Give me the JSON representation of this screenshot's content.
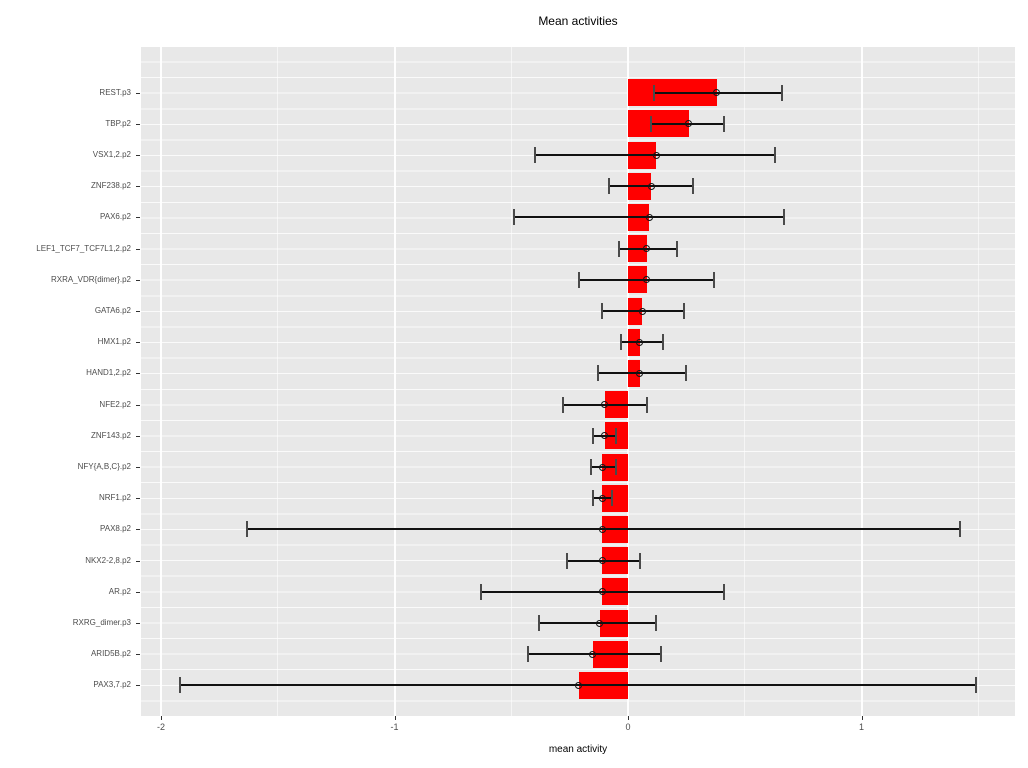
{
  "title": "Mean activities",
  "chart_data": {
    "type": "bar",
    "orientation": "horizontal",
    "title": "Mean activities",
    "xlabel": "mean activity",
    "ylabel": "",
    "xlim": [
      -2.09,
      1.66
    ],
    "x_major_ticks": [
      -2,
      -1,
      0,
      1
    ],
    "x_minor_ticks": [
      -1.5,
      -0.5,
      0.5,
      1.5
    ],
    "grid": true,
    "legend": false,
    "error_bars": true,
    "point_marker": "open-circle",
    "colors": {
      "bar": "#ff0000",
      "panel_background": "#e8e8e8",
      "grid_major": "#ffffff",
      "grid_minor": "#f5f5f5",
      "error_bar": "#111111",
      "error_cap": "#4a4a4a",
      "axis_text": "#4d4d4d",
      "title_text": "#000000"
    },
    "categories": [
      "REST.p3",
      "TBP.p2",
      "VSX1,2.p2",
      "ZNF238.p2",
      "PAX6.p2",
      "LEF1_TCF7_TCF7L1,2.p2",
      "RXRA_VDR{dimer}.p2",
      "GATA6.p2",
      "HMX1.p2",
      "HAND1,2.p2",
      "NFE2.p2",
      "ZNF143.p2",
      "NFY{A,B,C}.p2",
      "NRF1.p2",
      "PAX8.p2",
      "NKX2-2,8.p2",
      "AR.p2",
      "RXRG_dimer.p3",
      "ARID5B.p2",
      "PAX3,7.p2"
    ],
    "values": [
      0.38,
      0.26,
      0.12,
      0.1,
      0.09,
      0.08,
      0.08,
      0.06,
      0.05,
      0.05,
      -0.1,
      -0.1,
      -0.11,
      -0.11,
      -0.11,
      -0.11,
      -0.11,
      -0.12,
      -0.15,
      -0.21
    ],
    "error_low": [
      0.11,
      0.1,
      -0.4,
      -0.08,
      -0.49,
      -0.04,
      -0.21,
      -0.11,
      -0.03,
      -0.13,
      -0.28,
      -0.15,
      -0.16,
      -0.15,
      -1.63,
      -0.26,
      -0.63,
      -0.38,
      -0.43,
      -1.92
    ],
    "error_high": [
      0.66,
      0.41,
      0.63,
      0.28,
      0.67,
      0.21,
      0.37,
      0.24,
      0.15,
      0.25,
      0.08,
      -0.05,
      -0.05,
      -0.07,
      1.42,
      0.05,
      0.41,
      0.12,
      0.14,
      1.49
    ]
  }
}
